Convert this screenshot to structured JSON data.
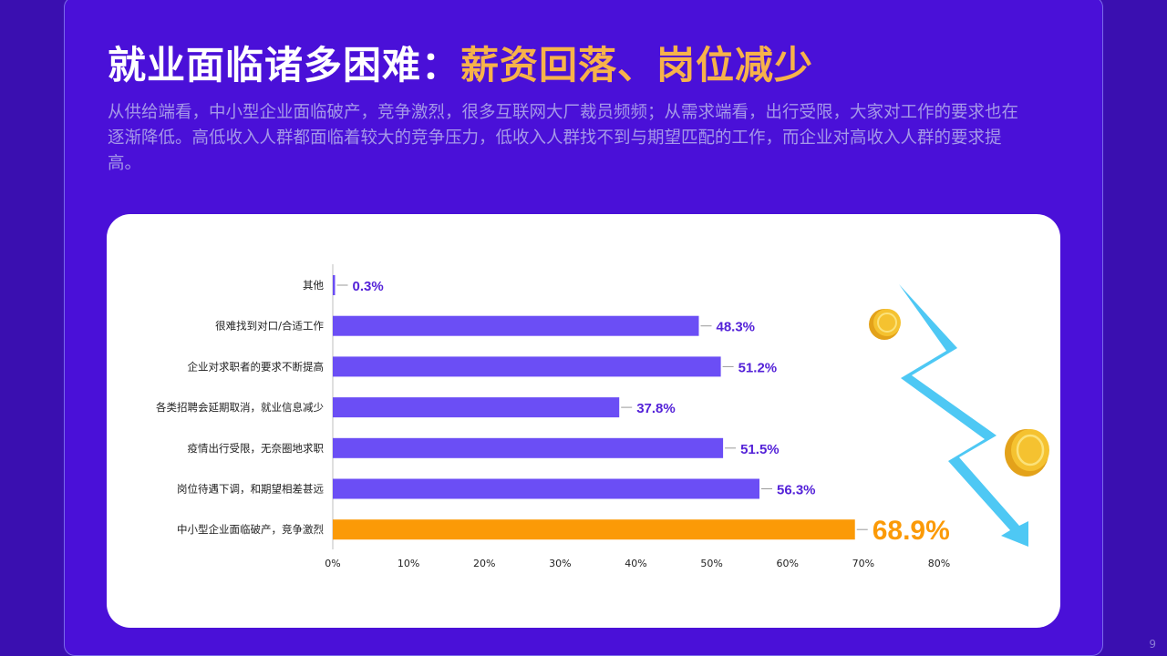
{
  "header": {
    "title_main": "就业面临诸多困难：",
    "title_highlight": "薪资回落、岗位减少",
    "subtitle": "从供给端看，中小型企业面临破产，竞争激烈，很多互联网大厂裁员频频；从需求端看，出行受限，大家对工作的要求也在逐渐降低。高低收入人群都面临着较大的竞争压力，低收入人群找不到与期望匹配的工作，而企业对高收入人群的要求提高。"
  },
  "colors": {
    "bar": "#6b4ef5",
    "highlight_bar": "#fb9a07",
    "label": "#5422d8",
    "highlight_label": "#fb9a07",
    "arrow": "#4ec8f4",
    "coin": "#f5c230"
  },
  "chart_data": {
    "type": "bar",
    "orientation": "horizontal",
    "categories": [
      "其他",
      "很难找到对口/合适工作",
      "企业对求职者的要求不断提高",
      "各类招聘会延期取消，就业信息减少",
      "疫情出行受限，无奈圈地求职",
      "岗位待遇下调，和期望相差甚远",
      "中小型企业面临破产，竞争激烈"
    ],
    "values": [
      0.3,
      48.3,
      51.2,
      37.8,
      51.5,
      56.3,
      68.9
    ],
    "value_labels": [
      "0.3%",
      "48.3%",
      "51.2%",
      "37.8%",
      "51.5%",
      "56.3%",
      "68.9%"
    ],
    "highlight_index": 6,
    "x_ticks": [
      "0%",
      "10%",
      "20%",
      "30%",
      "40%",
      "50%",
      "60%",
      "70%",
      "80%"
    ],
    "xlim": [
      0,
      80
    ],
    "grid": false,
    "title": "",
    "xlabel": "",
    "ylabel": ""
  },
  "page": {
    "number": "9"
  }
}
